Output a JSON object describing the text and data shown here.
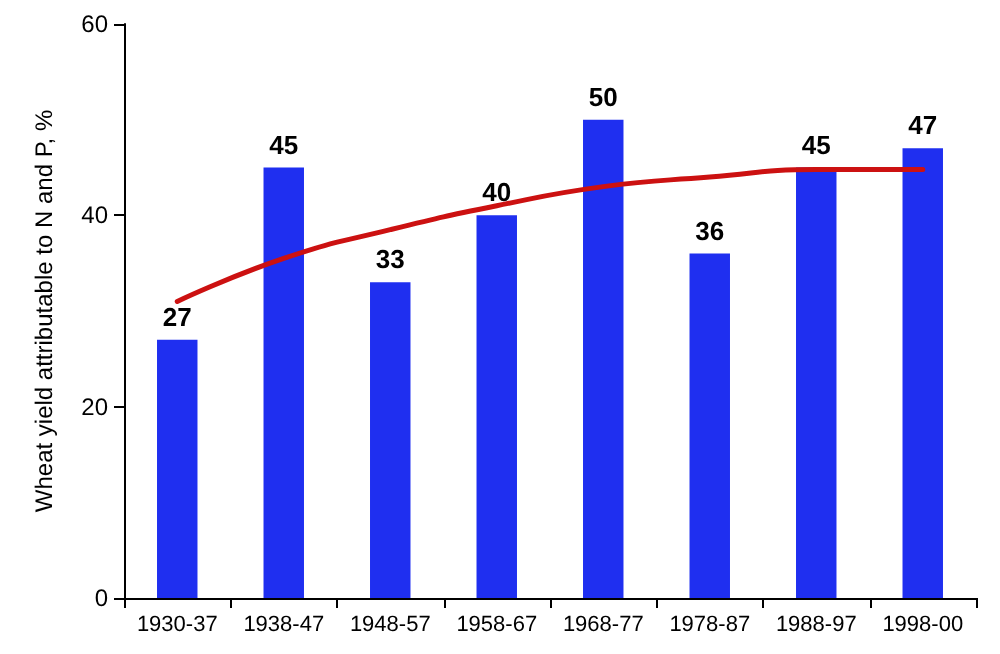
{
  "chart_data": {
    "type": "bar",
    "ylabel": "Wheat yield attributable to N and P, %",
    "categories": [
      "1930-37",
      "1938-47",
      "1948-57",
      "1958-67",
      "1968-77",
      "1978-87",
      "1988-97",
      "1998-00"
    ],
    "series": [
      {
        "color": "#1f2ff0",
        "values": [
          27,
          45,
          33,
          40,
          50,
          36,
          45,
          47
        ],
        "data_labels": true
      },
      {
        "type": "line",
        "color": "#cc1111",
        "x": [
          "1930-37",
          "1938-47",
          "1948-57",
          "1958-67",
          "1968-77",
          "1978-87",
          "1988-97",
          "1998-00"
        ],
        "values": [
          31,
          35.5,
          38.5,
          41,
          43,
          44,
          44.8,
          44.8
        ],
        "marker": "none",
        "line_style": "solid"
      }
    ],
    "ylim": [
      0,
      60
    ],
    "yticks": [
      0,
      20,
      40,
      60
    ],
    "grid": false
  }
}
